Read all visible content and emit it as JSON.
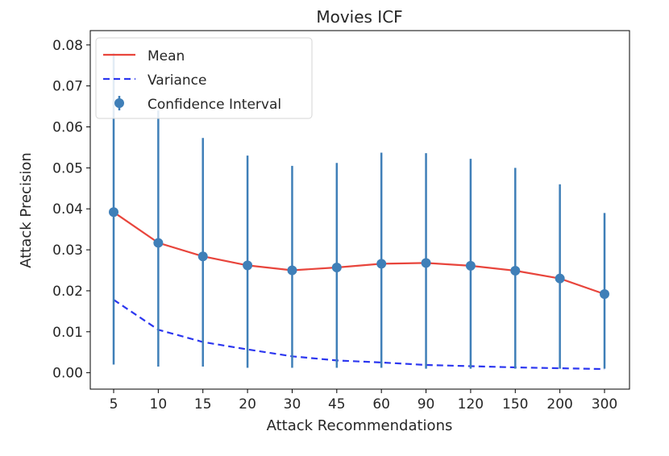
{
  "chart_data": {
    "type": "line",
    "title": "Movies ICF",
    "xlabel": "Attack Recommendations",
    "ylabel": "Attack Precision",
    "categories": [
      "5",
      "10",
      "15",
      "20",
      "30",
      "45",
      "60",
      "90",
      "120",
      "150",
      "200",
      "300"
    ],
    "ylim": [
      -0.004,
      0.0835
    ],
    "yticks": [
      "0.00",
      "0.01",
      "0.02",
      "0.03",
      "0.04",
      "0.05",
      "0.06",
      "0.07",
      "0.08"
    ],
    "ytick_values": [
      0,
      0.01,
      0.02,
      0.03,
      0.04,
      0.05,
      0.06,
      0.07,
      0.08
    ],
    "grid": false,
    "legend_position": "top-left",
    "series": [
      {
        "name": "Mean",
        "style": "solid",
        "color": "#e8453c",
        "values": [
          0.0392,
          0.0317,
          0.0284,
          0.0262,
          0.025,
          0.0257,
          0.0266,
          0.0268,
          0.0261,
          0.0249,
          0.023,
          0.0192
        ]
      },
      {
        "name": "Variance",
        "style": "dashed",
        "color": "#2c37f0",
        "values": [
          0.0178,
          0.0105,
          0.0075,
          0.0057,
          0.004,
          0.003,
          0.0025,
          0.0019,
          0.0016,
          0.0013,
          0.0011,
          0.0009
        ]
      },
      {
        "name": "Confidence Interval",
        "style": "errorbar",
        "color": "#3f7fb8",
        "values": [
          0.0392,
          0.0317,
          0.0284,
          0.0262,
          0.025,
          0.0257,
          0.0266,
          0.0268,
          0.0261,
          0.0249,
          0.023,
          0.0192
        ],
        "lower": [
          0.002,
          0.0015,
          0.0015,
          0.0012,
          0.0012,
          0.0012,
          0.0012,
          0.001,
          0.001,
          0.001,
          0.001,
          0.001
        ],
        "upper": [
          0.078,
          0.064,
          0.0573,
          0.053,
          0.0505,
          0.0512,
          0.0537,
          0.0536,
          0.0522,
          0.05,
          0.046,
          0.039
        ]
      }
    ]
  }
}
